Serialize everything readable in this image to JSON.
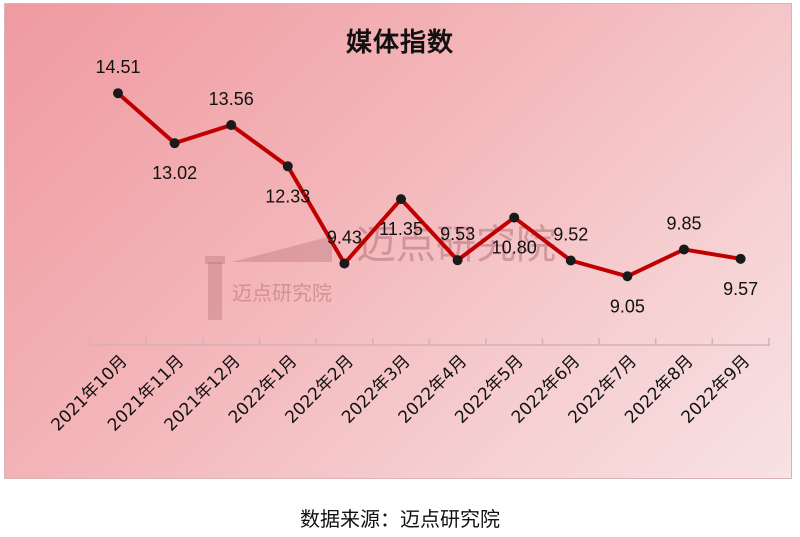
{
  "chart_data": {
    "type": "line",
    "title": "媒体指数",
    "categories": [
      "2021年10月",
      "2021年11月",
      "2021年12月",
      "2022年1月",
      "2022年2月",
      "2022年3月",
      "2022年4月",
      "2022年5月",
      "2022年6月",
      "2022年7月",
      "2022年8月",
      "2022年9月"
    ],
    "series": [
      {
        "values": [
          14.51,
          13.02,
          13.56,
          12.33,
          9.43,
          11.35,
          9.53,
          10.8,
          9.52,
          9.05,
          9.85,
          9.57
        ]
      }
    ],
    "data_labels": [
      "14.51",
      "13.02",
      "13.56",
      "12.33",
      "9.43",
      "11.35",
      "9.53",
      "10.80",
      "9.52",
      "9.05",
      "9.85",
      "9.57"
    ],
    "label_position": [
      "above",
      "below",
      "above",
      "below",
      "above",
      "below",
      "above",
      "below",
      "above",
      "below",
      "above",
      "below"
    ],
    "ylim": [
      7,
      15.5
    ],
    "grid": false,
    "line_color": "#c00000",
    "marker_color": "#1a1a1a"
  },
  "source": "数据来源：迈点研究院",
  "watermark": {
    "text": "迈点研究院",
    "small_text": "迈点研究院"
  }
}
